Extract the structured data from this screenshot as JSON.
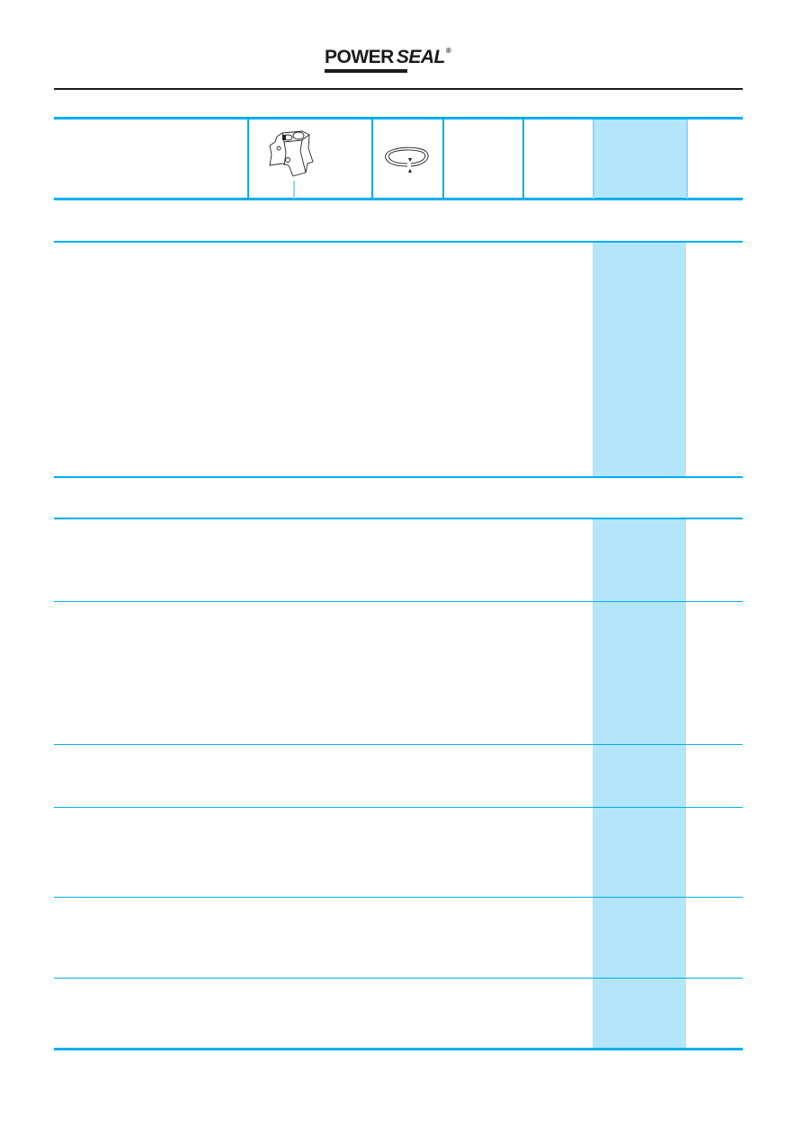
{
  "header": {
    "logo": {
      "word1": "POWER",
      "word2": "SEAL",
      "mark": "®"
    }
  },
  "table": {
    "header_icons": [
      "cylinder-block-icon",
      "piston-ring-gap-icon"
    ],
    "highlight_color": "#b3e6fa",
    "line_color": "#00aeef"
  }
}
